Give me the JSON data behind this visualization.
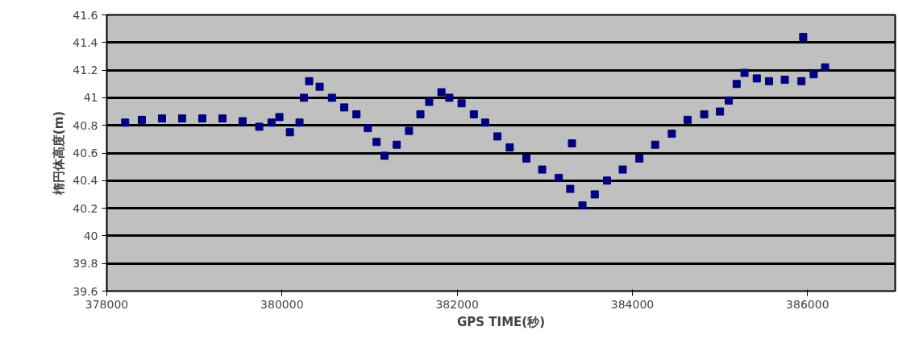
{
  "chart_data": {
    "type": "scatter",
    "xlabel": "GPS TIME(秒)",
    "ylabel": "楕円体高度(m)",
    "xlim": [
      378000,
      387000
    ],
    "xticks": [
      378000,
      380000,
      382000,
      384000,
      386000
    ],
    "ylim": [
      39.6,
      41.6
    ],
    "yticks": [
      39.6,
      39.8,
      40,
      40.2,
      40.4,
      40.6,
      40.8,
      41,
      41.2,
      41.4,
      41.6
    ],
    "grid": "y",
    "marker": "square",
    "series": [
      {
        "color": "#000080",
        "x": [
          378210,
          378400,
          378630,
          378860,
          379090,
          379320,
          379550,
          379740,
          379880,
          379970,
          380090,
          380200,
          380250,
          380310,
          380430,
          380570,
          380710,
          380850,
          380980,
          381080,
          381170,
          381310,
          381450,
          381580,
          381680,
          381820,
          381910,
          382050,
          382190,
          382320,
          382460,
          382600,
          382790,
          382970,
          383160,
          383290,
          383430,
          383570,
          383710,
          383890,
          384080,
          384260,
          384450,
          384630,
          384820,
          385000,
          385100,
          385190,
          385280,
          385420,
          385560,
          385740,
          385930,
          386070,
          386200,
          385950,
          383310
        ],
        "values": [
          40.82,
          40.84,
          40.85,
          40.85,
          40.85,
          40.85,
          40.83,
          40.79,
          40.82,
          40.86,
          40.75,
          40.82,
          41.0,
          41.12,
          41.08,
          41.0,
          40.93,
          40.88,
          40.78,
          40.68,
          40.58,
          40.66,
          40.76,
          40.88,
          40.97,
          41.04,
          41.0,
          40.96,
          40.88,
          40.82,
          40.72,
          40.64,
          40.56,
          40.48,
          40.42,
          40.34,
          40.22,
          40.3,
          40.4,
          40.48,
          40.56,
          40.66,
          40.74,
          40.84,
          40.88,
          40.9,
          40.98,
          41.1,
          41.18,
          41.14,
          41.12,
          41.13,
          41.12,
          41.17,
          41.22,
          41.44,
          40.67
        ]
      }
    ]
  }
}
